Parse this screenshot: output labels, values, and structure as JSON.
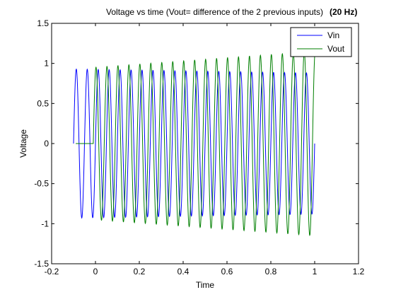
{
  "chart_data": {
    "type": "line",
    "title": "Voltage vs time (Vout= difference of the 2 previous inputs)",
    "title_suffix": "(20 Hz)",
    "xlabel": "Time",
    "ylabel": "Voltage",
    "xlim": [
      -0.2,
      1.2
    ],
    "ylim": [
      -1.5,
      1.5
    ],
    "xticks": [
      -0.2,
      0,
      0.2,
      0.4,
      0.6,
      0.8,
      1,
      1.2
    ],
    "xtick_labels": [
      "-0.2",
      "0",
      "0.2",
      "0.4",
      "0.6",
      "0.8",
      "1",
      "1.2"
    ],
    "yticks": [
      -1.5,
      -1,
      -0.5,
      0,
      0.5,
      1,
      1.5
    ],
    "ytick_labels": [
      "-1.5",
      "-1",
      "-0.5",
      "0",
      "0.5",
      "1",
      "1.5"
    ],
    "grid": false,
    "legend_position": "top-right",
    "series": [
      {
        "name": "Vin",
        "color": "#0000ff",
        "signal": "sine",
        "frequency_hz": 20,
        "t_start": -0.1,
        "t_end": 1.0,
        "amplitude_start": 0.93,
        "amplitude_end": 0.88,
        "peak_values": [
          0.92,
          0.84
        ],
        "trough_values": [
          -0.93,
          -0.86
        ]
      },
      {
        "name": "Vout",
        "color": "#007f00",
        "signal": "sine",
        "frequency_hz": 20,
        "flat_segment": {
          "t_start": -0.09,
          "t_end": -0.01,
          "value": 0
        },
        "t_start": -0.01,
        "t_end": 1.0,
        "amplitude_start": 0.95,
        "amplitude_end": 1.15,
        "peak_values": [
          0.92,
          1.14
        ],
        "trough_values": [
          -1.13,
          -1.0
        ]
      }
    ]
  }
}
